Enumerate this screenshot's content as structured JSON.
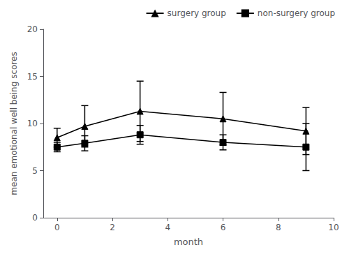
{
  "chart_data": {
    "type": "line",
    "x_label": "month",
    "y_label": "mean emotional well being scores",
    "x": [
      0,
      1,
      3,
      6,
      9
    ],
    "series": [
      {
        "name": "surgery group",
        "color": "black",
        "marker": "triangle",
        "line_style": "solid",
        "values": [
          8.5,
          9.7,
          11.3,
          10.5,
          9.2
        ],
        "yerr": [
          1.0,
          2.2,
          3.2,
          2.8,
          2.5
        ]
      },
      {
        "name": "non-surgery group",
        "color": "black",
        "marker": "square",
        "line_style": "solid",
        "values": [
          7.5,
          7.9,
          8.8,
          8.0,
          7.5
        ],
        "yerr": [
          0.5,
          0.8,
          1.0,
          0.8,
          2.5
        ]
      }
    ],
    "xlim": [
      -0.5,
      10
    ],
    "ylim": [
      0,
      20
    ],
    "xticks": [
      0,
      2,
      4,
      6,
      8,
      10
    ],
    "yticks": [
      0,
      5,
      10,
      15,
      20
    ],
    "grid": false,
    "legend": "upper right"
  }
}
